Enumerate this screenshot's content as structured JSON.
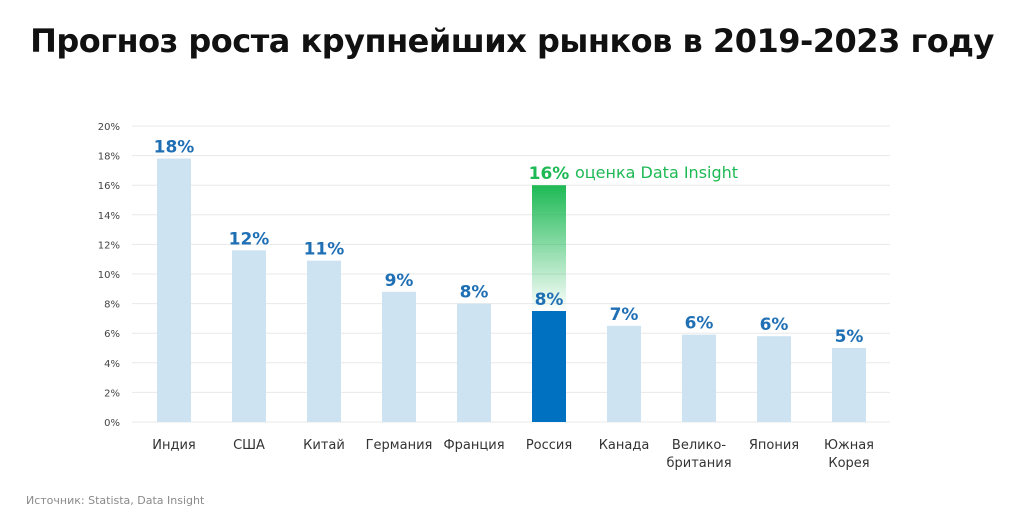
{
  "title": "Прогноз роста крупнейших рынков в 2019-2023 году",
  "source": "Источник: Statista, Data Insight",
  "colors": {
    "bar": "#cde3f1",
    "highlight": "#0070c0",
    "value_label": "#1f6fb5",
    "estimate": "#1db954",
    "grid": "#e8e8e8",
    "axis_text": "#444444",
    "category_text": "#333333"
  },
  "chart_data": {
    "type": "bar",
    "title": "Прогноз роста крупнейших рынков в 2019-2023 году",
    "xlabel": "",
    "ylabel": "",
    "ylim": [
      0,
      20
    ],
    "y_ticks": [
      "0%",
      "2%",
      "4%",
      "6%",
      "8%",
      "10%",
      "12%",
      "14%",
      "16%",
      "18%",
      "20%"
    ],
    "grid": true,
    "categories": [
      [
        "Индия"
      ],
      [
        "США"
      ],
      [
        "Китай"
      ],
      [
        "Германия"
      ],
      [
        "Франция"
      ],
      [
        "Россия"
      ],
      [
        "Канада"
      ],
      [
        "Велико-",
        "британия"
      ],
      [
        "Япония"
      ],
      [
        "Южная",
        "Корея"
      ]
    ],
    "values": [
      17.8,
      11.6,
      10.9,
      8.8,
      8.0,
      7.5,
      6.5,
      5.9,
      5.8,
      5.0
    ],
    "value_labels": [
      "18%",
      "12%",
      "11%",
      "9%",
      "8%",
      "8%",
      "7%",
      "6%",
      "6%",
      "5%"
    ],
    "highlight_index": 5,
    "estimate": {
      "index": 5,
      "value": 16,
      "value_label": "16%",
      "text": "оценка Data Insight"
    }
  }
}
